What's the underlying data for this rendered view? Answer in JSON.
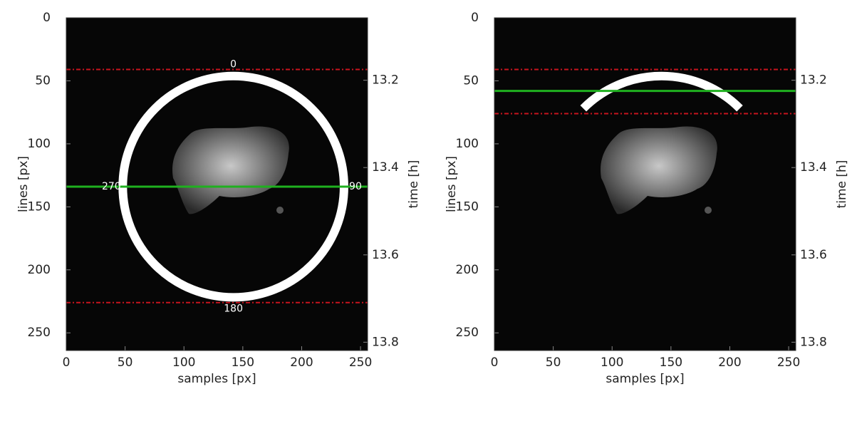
{
  "chart_data": [
    {
      "type": "image",
      "xlabel": "samples [px]",
      "ylabel": "lines [px]",
      "y2label": "time [h]",
      "xlim": [
        0,
        256
      ],
      "xticks": [
        0,
        50,
        100,
        150,
        200,
        250
      ],
      "ylim": [
        0,
        264
      ],
      "y_reversed": true,
      "yticks": [
        0,
        50,
        100,
        150,
        200,
        250
      ],
      "y2lim": [
        13.057,
        13.819
      ],
      "y2ticks": [
        13.2,
        13.4,
        13.6,
        13.8
      ],
      "red_lines": [
        41,
        226
      ],
      "red_color": "#c8141e",
      "green_line": 134,
      "green_color": "#1fb01f",
      "ring": {
        "cx": 142,
        "cy": 134,
        "r": 94,
        "color": "#ffffff",
        "labels": [
          0,
          90,
          180,
          270
        ]
      }
    },
    {
      "type": "image",
      "xlabel": "samples [px]",
      "ylabel": "lines [px]",
      "y2label": "time [h]",
      "xlim": [
        0,
        256
      ],
      "xticks": [
        0,
        50,
        100,
        150,
        200,
        250
      ],
      "ylim": [
        0,
        264
      ],
      "y_reversed": true,
      "yticks": [
        0,
        50,
        100,
        150,
        200,
        250
      ],
      "y2lim": [
        13.057,
        13.819
      ],
      "y2ticks": [
        13.2,
        13.4,
        13.6,
        13.8
      ],
      "red_lines": [
        41,
        76
      ],
      "red_color": "#c8141e",
      "green_line": 58,
      "green_color": "#1fb01f",
      "ring": {
        "cx": 142,
        "cy": 134,
        "r": 94,
        "color": "#ffffff",
        "arc": [
          -45,
          45
        ]
      }
    }
  ]
}
